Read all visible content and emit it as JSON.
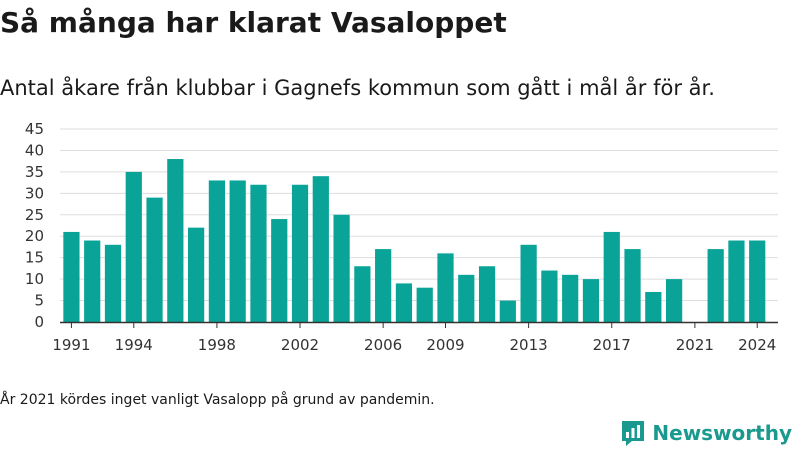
{
  "title": "Så många har klarat Vasaloppet",
  "subtitle": "Antal åkare från klubbar i Gagnefs kommun som gått i mål år för år.",
  "note": "År 2021 kördes inget vanligt Vasalopp på grund av pandemin.",
  "brand": {
    "name": "Newsworthy"
  },
  "colors": {
    "bar": "#0aa398",
    "grid": "#dddddd",
    "axis": "#333333",
    "brand": "#1a9a8e"
  },
  "chart_data": {
    "type": "bar",
    "categories": [
      "1991",
      "1992",
      "1993",
      "1994",
      "1995",
      "1996",
      "1997",
      "1998",
      "1999",
      "2000",
      "2001",
      "2002",
      "2003",
      "2004",
      "2005",
      "2006",
      "2007",
      "2008",
      "2009",
      "2010",
      "2011",
      "2012",
      "2013",
      "2014",
      "2015",
      "2016",
      "2017",
      "2018",
      "2019",
      "2020",
      "2021",
      "2022",
      "2023",
      "2024"
    ],
    "values": [
      21,
      19,
      18,
      35,
      29,
      38,
      22,
      33,
      33,
      32,
      24,
      32,
      34,
      25,
      13,
      17,
      9,
      8,
      16,
      11,
      13,
      5,
      18,
      12,
      11,
      10,
      21,
      17,
      7,
      10,
      0,
      17,
      19,
      19
    ],
    "x_tick_labels": [
      "1991",
      "1994",
      "1998",
      "2002",
      "2006",
      "2009",
      "2013",
      "2017",
      "2021",
      "2024"
    ],
    "y_ticks": [
      0,
      5,
      10,
      15,
      20,
      25,
      30,
      35,
      40,
      45
    ],
    "ylim": [
      0,
      45
    ],
    "grid": true,
    "legend": "none"
  }
}
